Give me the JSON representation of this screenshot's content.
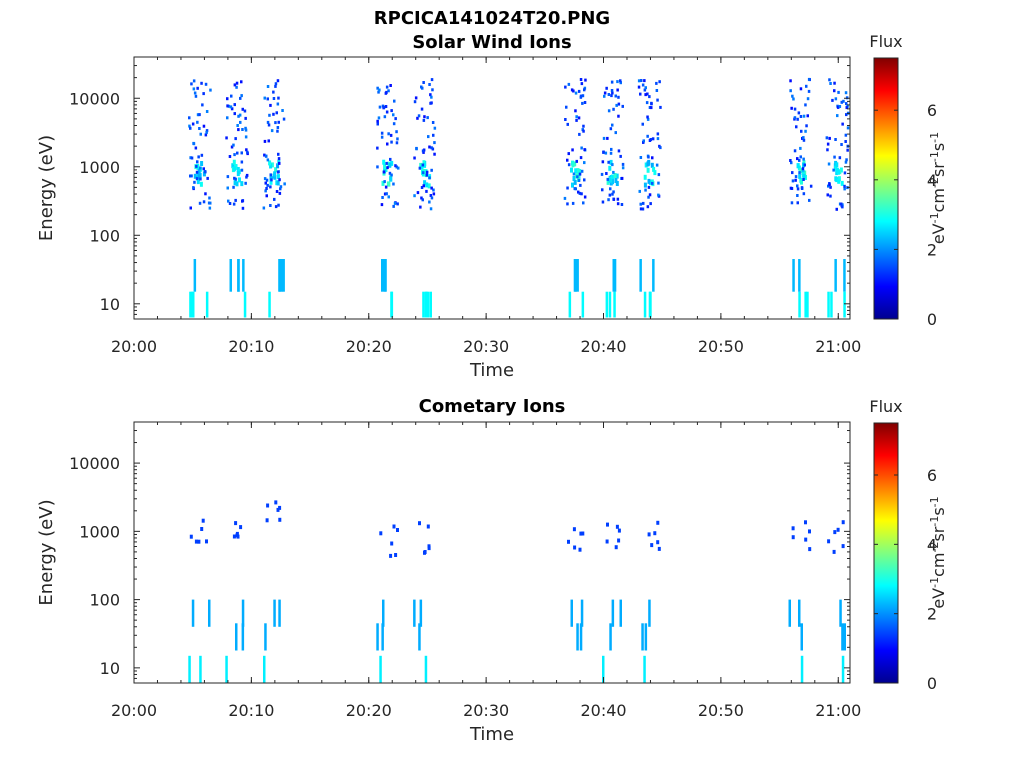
{
  "figure_title": "RPCICA141024T20.PNG",
  "chart_data": [
    {
      "type": "heatmap",
      "title": "Solar Wind Ions",
      "xlabel": "Time",
      "ylabel": "Energy (eV)",
      "x_ticks": [
        "20:00",
        "20:10",
        "20:20",
        "20:30",
        "20:40",
        "20:50",
        "21:00"
      ],
      "xlim": [
        "20:00",
        "21:01"
      ],
      "y_scale": "log",
      "y_ticks": [
        10,
        100,
        1000,
        10000
      ],
      "ylim": [
        6,
        40000
      ],
      "colorbar": {
        "title": "Flux",
        "label": "eV-1cm-2sr-1s-1",
        "range": [
          0,
          7.5
        ],
        "ticks": [
          0,
          2,
          4,
          6
        ],
        "colormap": "jet"
      },
      "bursts": [
        {
          "time": "20:05:30",
          "peak_energy": 900,
          "peak_flux": 3.2
        },
        {
          "time": "20:08:40",
          "peak_energy": 900,
          "peak_flux": 3.3
        },
        {
          "time": "20:11:50",
          "peak_energy": 850,
          "peak_flux": 3.1
        },
        {
          "time": "20:21:30",
          "peak_energy": 850,
          "peak_flux": 3.3
        },
        {
          "time": "20:24:40",
          "peak_energy": 850,
          "peak_flux": 3.4
        },
        {
          "time": "20:37:30",
          "peak_energy": 850,
          "peak_flux": 3.2
        },
        {
          "time": "20:40:40",
          "peak_energy": 850,
          "peak_flux": 3.2
        },
        {
          "time": "20:43:50",
          "peak_energy": 850,
          "peak_flux": 3.1
        },
        {
          "time": "20:56:40",
          "peak_energy": 850,
          "peak_flux": 3.3
        },
        {
          "time": "20:59:50",
          "peak_energy": 850,
          "peak_flux": 3.2
        }
      ]
    },
    {
      "type": "heatmap",
      "title": "Cometary Ions",
      "xlabel": "Time",
      "ylabel": "Energy (eV)",
      "x_ticks": [
        "20:00",
        "20:10",
        "20:20",
        "20:30",
        "20:40",
        "20:50",
        "21:00"
      ],
      "xlim": [
        "20:00",
        "21:01"
      ],
      "y_scale": "log",
      "y_ticks": [
        10,
        100,
        1000,
        10000
      ],
      "ylim": [
        6,
        40000
      ],
      "colorbar": {
        "title": "Flux",
        "label": "eV-1cm-2sr-1s-1",
        "range": [
          0,
          7.5
        ],
        "ticks": [
          0,
          2,
          4,
          6
        ],
        "colormap": "jet"
      },
      "bursts": [
        {
          "time": "20:05:30",
          "peak_energy": 900,
          "peak_flux": 1.4
        },
        {
          "time": "20:08:40",
          "peak_energy": 900,
          "peak_flux": 1.4
        },
        {
          "time": "20:11:50",
          "peak_energy": 2000,
          "peak_flux": 1.4
        },
        {
          "time": "20:21:30",
          "peak_energy": 800,
          "peak_flux": 1.4
        },
        {
          "time": "20:24:40",
          "peak_energy": 850,
          "peak_flux": 1.4
        },
        {
          "time": "20:37:30",
          "peak_energy": 1000,
          "peak_flux": 1.4
        },
        {
          "time": "20:40:40",
          "peak_energy": 850,
          "peak_flux": 1.4
        },
        {
          "time": "20:43:50",
          "peak_energy": 850,
          "peak_flux": 1.4
        },
        {
          "time": "20:56:40",
          "peak_energy": 850,
          "peak_flux": 1.4
        },
        {
          "time": "20:59:50",
          "peak_energy": 850,
          "peak_flux": 1.4
        }
      ]
    }
  ]
}
